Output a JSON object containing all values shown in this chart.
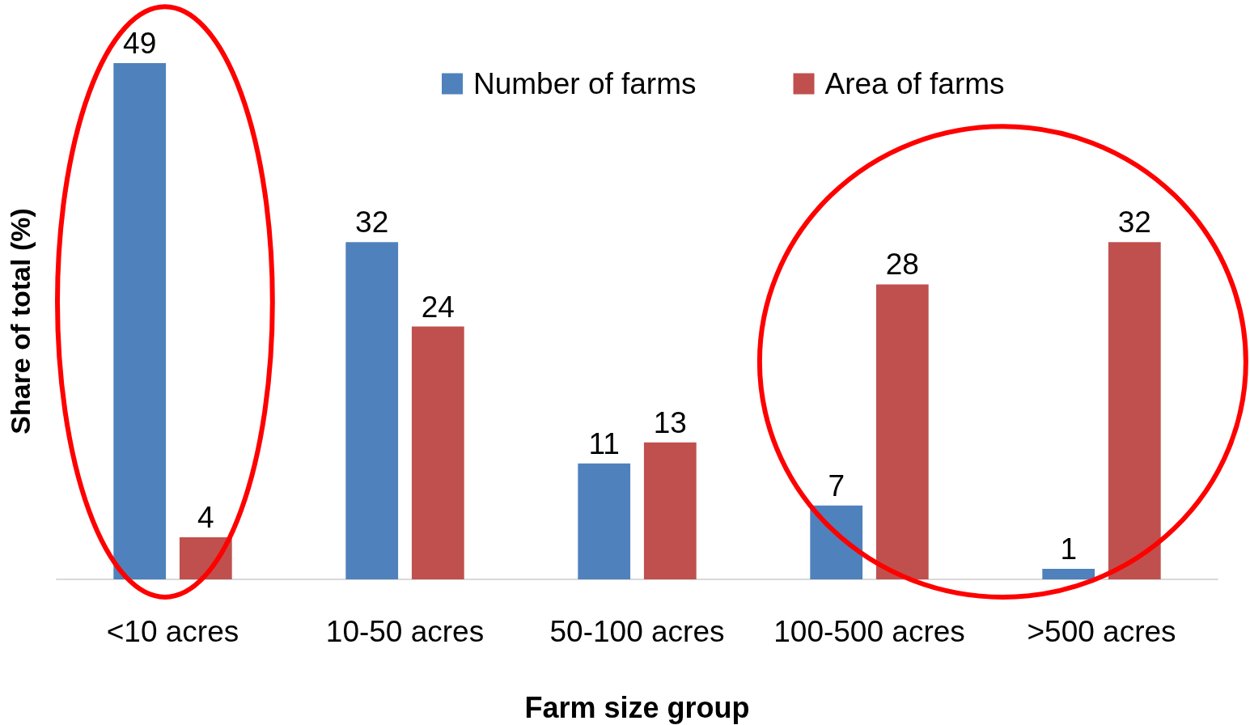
{
  "chart_data": {
    "type": "bar",
    "xlabel": "Farm size group",
    "ylabel": "Share of total (%)",
    "categories": [
      "<10 acres",
      "10-50 acres",
      "50-100 acres",
      "100-500 acres",
      ">500 acres"
    ],
    "series": [
      {
        "name": "Number of farms",
        "color": "#4f81bd",
        "values": [
          49,
          32,
          11,
          7,
          1
        ]
      },
      {
        "name": "Area of farms",
        "color": "#c0504d",
        "values": [
          4,
          24,
          13,
          28,
          32
        ]
      }
    ],
    "data_labels": true,
    "legend": "top",
    "tick_labels": "x"
  }
}
